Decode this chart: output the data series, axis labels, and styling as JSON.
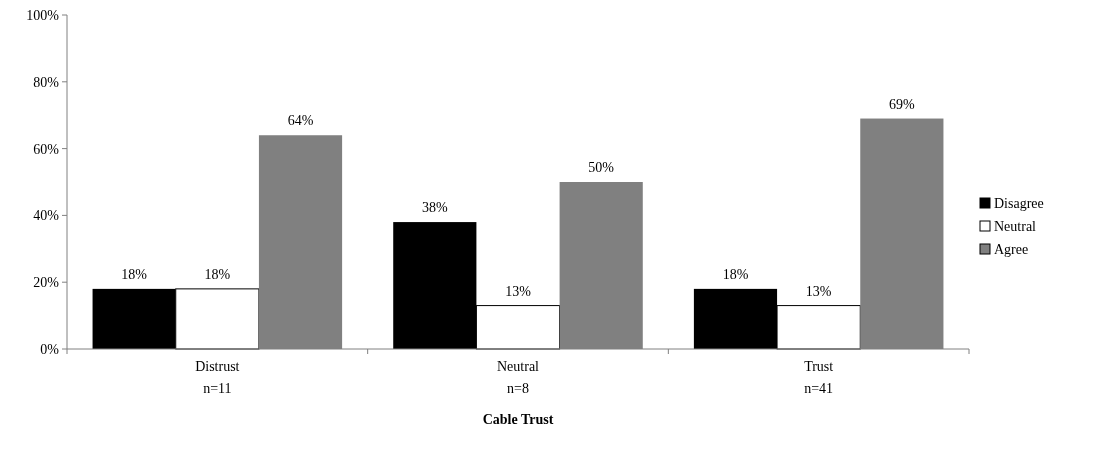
{
  "chart_data": {
    "type": "bar",
    "xlabel": "Cable Trust",
    "categories": [
      "Distrust\nn=11",
      "Neutral\nn=8",
      "Trust\nn=41"
    ],
    "series": [
      {
        "name": "Disagree",
        "color": "#000000",
        "values": [
          18,
          38,
          18
        ],
        "value_labels": [
          "18%",
          "38%",
          "18%"
        ]
      },
      {
        "name": "Neutral",
        "color": "#ffffff",
        "values": [
          18,
          13,
          13
        ],
        "value_labels": [
          "18%",
          "13%",
          "13%"
        ]
      },
      {
        "name": "Agree",
        "color": "#808080",
        "values": [
          64,
          50,
          69
        ],
        "value_labels": [
          "64%",
          "50%",
          "69%"
        ]
      }
    ],
    "ylim": [
      0,
      100
    ],
    "yticks": [
      {
        "value": 0,
        "label": "0%"
      },
      {
        "value": 20,
        "label": "20%"
      },
      {
        "value": 40,
        "label": "40%"
      },
      {
        "value": 60,
        "label": "60%"
      },
      {
        "value": 80,
        "label": "80%"
      },
      {
        "value": 100,
        "label": "100%"
      }
    ],
    "grid": false,
    "legend": "right"
  }
}
